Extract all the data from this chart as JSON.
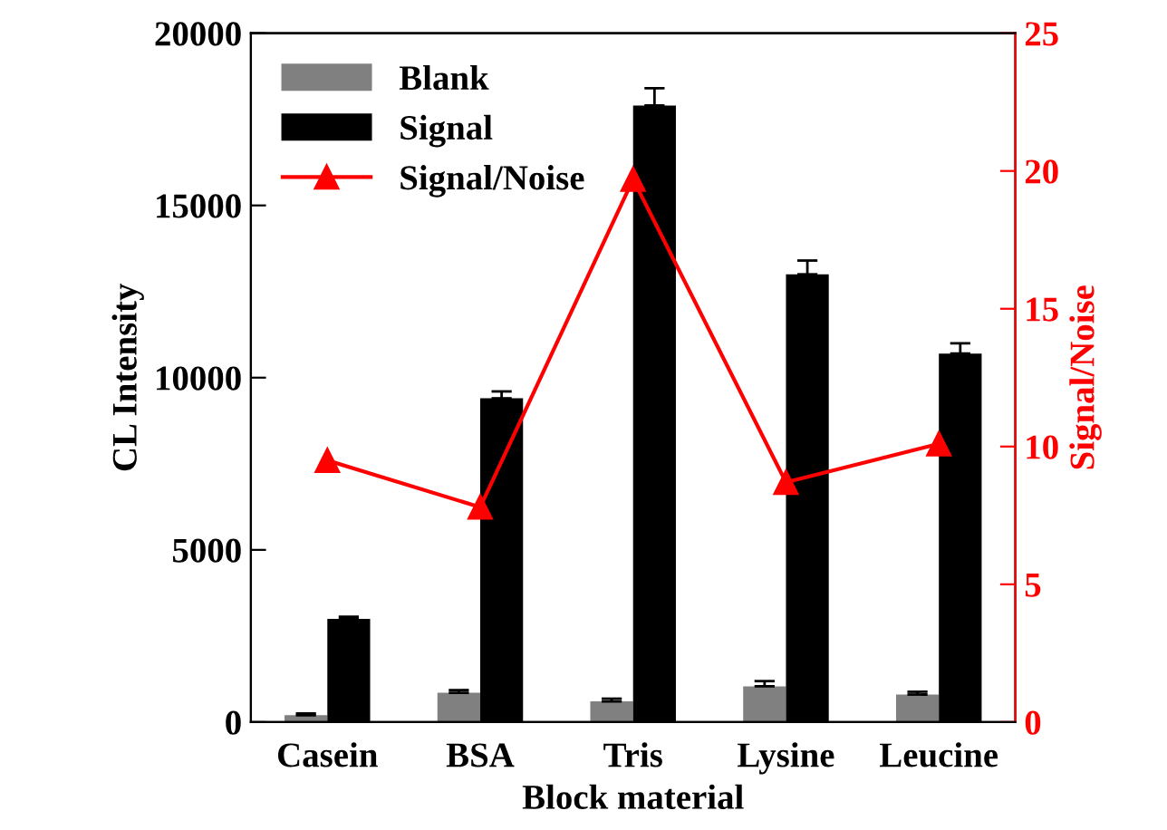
{
  "chart_data": {
    "type": "bar",
    "xlabel": "Block material",
    "ylabel": "CL Intensity",
    "y2label": "Signal/Noise",
    "categories": [
      "Casein",
      "BSA",
      "Tris",
      "Lysine",
      "Leucine"
    ],
    "series": [
      {
        "name": "Blank",
        "color": "#808080",
        "values": [
          200,
          850,
          600,
          1040,
          800
        ],
        "errors": [
          50,
          80,
          80,
          150,
          80
        ]
      },
      {
        "name": "Signal",
        "color": "#000000",
        "values": [
          3000,
          9400,
          17900,
          13000,
          10700
        ],
        "errors": [
          60,
          200,
          500,
          400,
          300
        ]
      },
      {
        "name": "Signal/Noise",
        "type": "line",
        "axis": "y2",
        "color": "#ff0000",
        "marker": "triangle",
        "values": [
          9.5,
          7.8,
          19.7,
          8.7,
          10.1
        ]
      }
    ],
    "ylim": [
      0,
      20000
    ],
    "yticks": [
      0,
      5000,
      10000,
      15000,
      20000
    ],
    "y2lim": [
      0,
      25
    ],
    "y2ticks": [
      0,
      5,
      10,
      15,
      20,
      25
    ],
    "legend": "top left",
    "grid": false
  }
}
